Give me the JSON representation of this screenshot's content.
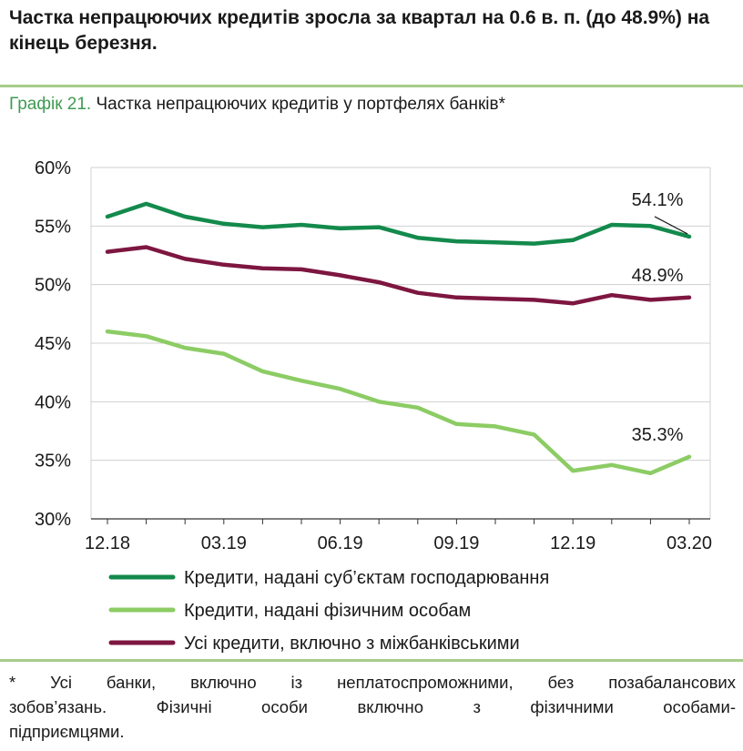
{
  "headline": "Частка непрацюючих кредитів зросла за квартал на 0.6 в. п. (до 48.9%) на кінець березня.",
  "caption": {
    "number": "Графік 21.",
    "text": " Частка непрацюючих кредитів у портфелях банків*"
  },
  "colors": {
    "business": "#138a4c",
    "individuals": "#8ccc64",
    "total": "#7d1640",
    "grid": "#d0d0d0",
    "rule": "#a6cc8a"
  },
  "chart_data": {
    "type": "line",
    "title": "Частка непрацюючих кредитів у портфелях банків*",
    "xlabel": "",
    "ylabel": "",
    "ylim": [
      30,
      60
    ],
    "yticks": [
      30,
      35,
      40,
      45,
      50,
      55,
      60
    ],
    "ytick_labels": [
      "30%",
      "35%",
      "40%",
      "45%",
      "50%",
      "55%",
      "60%"
    ],
    "x_ticks": [
      {
        "index": 0,
        "label": "12.18"
      },
      {
        "index": 3,
        "label": "03.19"
      },
      {
        "index": 6,
        "label": "06.19"
      },
      {
        "index": 9,
        "label": "09.19"
      },
      {
        "index": 12,
        "label": "12.19"
      },
      {
        "index": 15,
        "label": "03.20"
      }
    ],
    "n_points": 16,
    "grid": true,
    "series": [
      {
        "name": "Кредити, надані суб’єктам господарювання",
        "color_key": "business",
        "values": [
          55.8,
          56.9,
          55.8,
          55.2,
          54.9,
          55.1,
          54.8,
          54.9,
          54.0,
          53.7,
          53.6,
          53.5,
          53.8,
          55.1,
          55.0,
          54.1
        ],
        "end_label": "54.1%"
      },
      {
        "name": "Кредити, надані фізичним особам",
        "color_key": "individuals",
        "values": [
          46.0,
          45.6,
          44.6,
          44.1,
          42.6,
          41.8,
          41.1,
          40.0,
          39.5,
          38.1,
          37.9,
          37.2,
          34.1,
          34.6,
          33.9,
          35.3
        ],
        "end_label": "35.3%"
      },
      {
        "name": "Усі кредити, включно з міжбанківськими",
        "color_key": "total",
        "values": [
          52.8,
          53.2,
          52.2,
          51.7,
          51.4,
          51.3,
          50.8,
          50.2,
          49.3,
          48.9,
          48.8,
          48.7,
          48.4,
          49.1,
          48.7,
          48.9
        ],
        "end_label": "48.9%"
      }
    ],
    "legend": [
      {
        "label": "Кредити, надані суб’єктам господарювання",
        "color_key": "business"
      },
      {
        "label": "Кредити, надані фізичним особам",
        "color_key": "individuals"
      },
      {
        "label": "Усі кредити, включно з міжбанківськими",
        "color_key": "total"
      }
    ]
  },
  "footnote": {
    "line1": "* Усі банки, включно із неплатоспроможними, без позабалансових",
    "line2": "зобов’язань. Фізичні особи включно з фізичними особами-",
    "line3": "підприємцями."
  }
}
